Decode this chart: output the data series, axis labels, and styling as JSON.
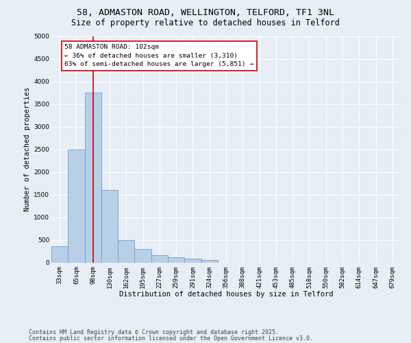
{
  "title_line1": "58, ADMASTON ROAD, WELLINGTON, TELFORD, TF1 3NL",
  "title_line2": "Size of property relative to detached houses in Telford",
  "xlabel": "Distribution of detached houses by size in Telford",
  "ylabel": "Number of detached properties",
  "categories": [
    "33sqm",
    "65sqm",
    "98sqm",
    "130sqm",
    "162sqm",
    "195sqm",
    "227sqm",
    "259sqm",
    "291sqm",
    "324sqm",
    "356sqm",
    "388sqm",
    "421sqm",
    "453sqm",
    "485sqm",
    "518sqm",
    "550sqm",
    "582sqm",
    "614sqm",
    "647sqm",
    "679sqm"
  ],
  "values": [
    350,
    2500,
    3750,
    1600,
    500,
    300,
    160,
    110,
    90,
    50,
    0,
    0,
    0,
    0,
    0,
    0,
    0,
    0,
    0,
    0,
    0
  ],
  "bar_color": "#b8cfe8",
  "bar_edge_color": "#6b9fc8",
  "vline_x": 2,
  "vline_color": "#cc0000",
  "annotation_text": "58 ADMASTON ROAD: 102sqm\n← 36% of detached houses are smaller (3,310)\n63% of semi-detached houses are larger (5,851) →",
  "annotation_box_color": "#ffffff",
  "annotation_box_edge": "#cc0000",
  "bg_color": "#e8eef5",
  "ylim": [
    0,
    5000
  ],
  "yticks": [
    0,
    500,
    1000,
    1500,
    2000,
    2500,
    3000,
    3500,
    4000,
    4500,
    5000
  ],
  "footer_line1": "Contains HM Land Registry data © Crown copyright and database right 2025.",
  "footer_line2": "Contains public sector information licensed under the Open Government Licence v3.0.",
  "title_fontsize": 9.5,
  "subtitle_fontsize": 8.5,
  "axis_label_fontsize": 7.5,
  "tick_fontsize": 6.5,
  "annotation_fontsize": 6.8,
  "footer_fontsize": 6.0
}
